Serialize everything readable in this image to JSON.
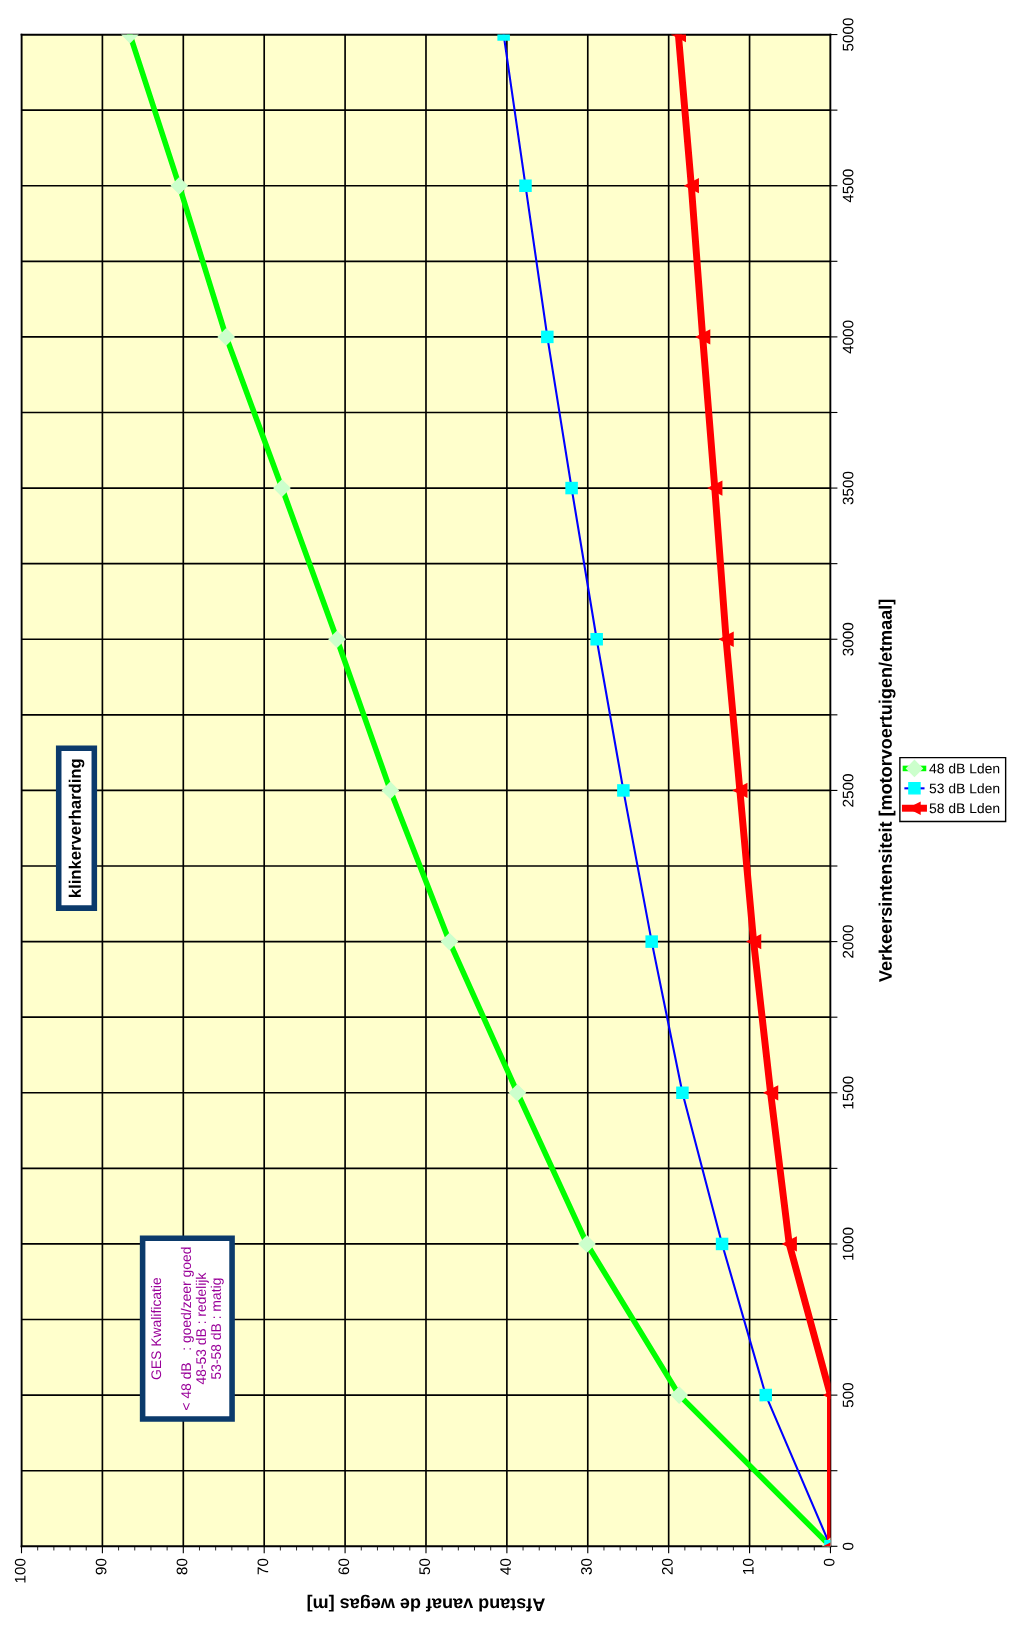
{
  "chart_data": {
    "type": "line",
    "xlabel": "Afstand vanaf de wegas [m]",
    "ylabel": "Verkeersintensiteit [motorvoertuigen/etmaal]",
    "xlim": [
      100,
      0
    ],
    "xticks": [
      100,
      90,
      80,
      70,
      60,
      50,
      40,
      30,
      20,
      10,
      0
    ],
    "ylim": [
      0,
      5000
    ],
    "yticks": [
      0,
      {
        "value": 250,
        "label": null
      },
      500,
      {
        "value": 750,
        "label": null
      },
      1000,
      {
        "value": 1250,
        "label": null
      },
      1500,
      {
        "value": 1750,
        "label": null
      },
      2000,
      {
        "value": 2250,
        "label": null
      },
      2500,
      {
        "value": 2750,
        "label": null
      },
      3000,
      {
        "value": 3250,
        "label": null
      },
      3500,
      {
        "value": 3750,
        "label": null
      },
      4000,
      {
        "value": 4250,
        "label": null
      },
      4500,
      {
        "value": 4750,
        "label": null
      },
      5000
    ],
    "grid": true,
    "legend": "right",
    "annotations": [
      "klinkerverharding",
      "GES Kwalificatie\n\n< 48 dB   : goed/zeer goed\n48-53 dB : redelijk\n53-58 dB : matig"
    ],
    "series": [
      {
        "name": "48 dB Lden",
        "color": "#00ff00",
        "marker": "diamond",
        "colors": [
          "#ccffcc",
          "#ccffcc",
          "#ccffcc",
          "#ccffcc",
          "#ccffcc",
          "#ccffcc",
          "#ccffcc",
          "#ccffcc",
          "#ccffcc",
          "#ccffcc",
          "#ccffcc"
        ],
        "x": [
          0,
          18.7,
          30.1,
          38.7,
          47.1,
          54.4,
          61.0,
          67.8,
          74.7,
          80.5,
          86.6
        ],
        "values": [
          0,
          500,
          1000,
          1500,
          2000,
          2500,
          3000,
          3500,
          4000,
          4500,
          5000
        ]
      },
      {
        "name": "53 dB Lden",
        "color": "#0000ff",
        "marker": "square",
        "colors": [
          "#00ffff",
          "#00ffff",
          "#00ffff",
          "#00ffff",
          "#00ffff",
          "#00ffff",
          "#00ffff",
          "#00ffff",
          "#00ffff",
          "#00ffff",
          "#00ffff"
        ],
        "x": [
          0,
          8.0,
          13.4,
          18.3,
          22.1,
          25.6,
          28.9,
          32.0,
          35.0,
          37.7,
          40.4
        ],
        "values": [
          0,
          500,
          1000,
          1500,
          2000,
          2500,
          3000,
          3500,
          4000,
          4500,
          5000
        ]
      },
      {
        "name": "58 dB Lden",
        "color": "#ff0000",
        "marker": "triangle",
        "x": [
          0,
          0,
          5.1,
          7.4,
          9.5,
          11.2,
          12.9,
          14.3,
          15.8,
          17.2,
          18.8
        ],
        "values": [
          0,
          500,
          1000,
          1500,
          2000,
          2500,
          3000,
          3500,
          4000,
          4500,
          5000
        ]
      }
    ]
  }
}
